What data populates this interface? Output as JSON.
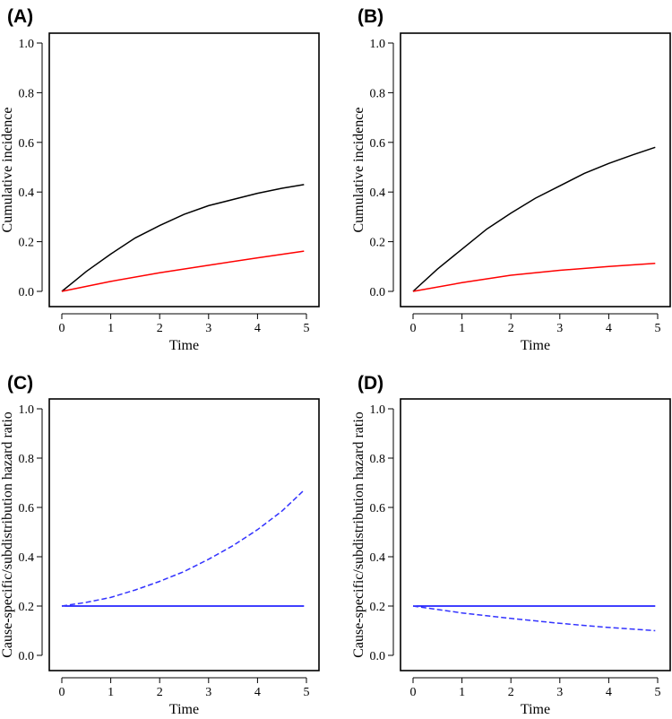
{
  "chart_data": [
    {
      "panel": "(A)",
      "type": "line",
      "xlabel": "Time",
      "ylabel": "Cumulative incidence",
      "xlim": [
        0,
        5
      ],
      "ylim": [
        0,
        1
      ],
      "xticks": [
        "0",
        "1",
        "2",
        "3",
        "4",
        "5"
      ],
      "yticks": [
        "0.0",
        "0.2",
        "0.4",
        "0.6",
        "0.8",
        "1.0"
      ],
      "series": [
        {
          "name": "black",
          "color": "#000000",
          "dash": "solid",
          "x": [
            0,
            0.25,
            0.5,
            1,
            1.5,
            2,
            2.5,
            3,
            3.5,
            4,
            4.5,
            4.95
          ],
          "y": [
            0,
            0.04,
            0.08,
            0.15,
            0.215,
            0.265,
            0.31,
            0.345,
            0.37,
            0.395,
            0.415,
            0.43
          ]
        },
        {
          "name": "red",
          "color": "#ff0000",
          "dash": "solid",
          "x": [
            0,
            1,
            2,
            3,
            4,
            4.95
          ],
          "y": [
            0,
            0.04,
            0.075,
            0.105,
            0.135,
            0.162
          ]
        }
      ]
    },
    {
      "panel": "(B)",
      "type": "line",
      "xlabel": "Time",
      "ylabel": "Cumulative incidence",
      "xlim": [
        0,
        5
      ],
      "ylim": [
        0,
        1
      ],
      "xticks": [
        "0",
        "1",
        "2",
        "3",
        "4",
        "5"
      ],
      "yticks": [
        "0.0",
        "0.2",
        "0.4",
        "0.6",
        "0.8",
        "1.0"
      ],
      "series": [
        {
          "name": "black",
          "color": "#000000",
          "dash": "solid",
          "x": [
            0,
            0.5,
            1,
            1.5,
            2,
            2.5,
            3,
            3.5,
            4,
            4.5,
            4.95
          ],
          "y": [
            0,
            0.09,
            0.17,
            0.25,
            0.315,
            0.375,
            0.425,
            0.475,
            0.515,
            0.55,
            0.58
          ]
        },
        {
          "name": "red",
          "color": "#ff0000",
          "dash": "solid",
          "x": [
            0,
            1,
            2,
            3,
            4,
            4.95
          ],
          "y": [
            0,
            0.035,
            0.065,
            0.085,
            0.1,
            0.113
          ]
        }
      ]
    },
    {
      "panel": "(C)",
      "type": "line",
      "xlabel": "Time",
      "ylabel": "Cause-specific/subdistribution hazard ratio",
      "xlim": [
        0,
        5
      ],
      "ylim": [
        0,
        1
      ],
      "xticks": [
        "0",
        "1",
        "2",
        "3",
        "4",
        "5"
      ],
      "yticks": [
        "0.0",
        "0.2",
        "0.4",
        "0.6",
        "0.8",
        "1.0"
      ],
      "series": [
        {
          "name": "blue-solid",
          "color": "#0000ff",
          "dash": "solid",
          "x": [
            0,
            4.95
          ],
          "y": [
            0.2,
            0.2
          ]
        },
        {
          "name": "blue-dashed",
          "color": "#3333ff",
          "dash": "dashed",
          "x": [
            0,
            0.5,
            1,
            1.5,
            2,
            2.5,
            3,
            3.5,
            4,
            4.5,
            4.95
          ],
          "y": [
            0.2,
            0.215,
            0.235,
            0.265,
            0.3,
            0.34,
            0.39,
            0.445,
            0.51,
            0.585,
            0.67
          ]
        }
      ]
    },
    {
      "panel": "(D)",
      "type": "line",
      "xlabel": "Time",
      "ylabel": "Cause-specific/subdistribution hazard ratio",
      "xlim": [
        0,
        5
      ],
      "ylim": [
        0,
        1
      ],
      "xticks": [
        "0",
        "1",
        "2",
        "3",
        "4",
        "5"
      ],
      "yticks": [
        "0.0",
        "0.2",
        "0.4",
        "0.6",
        "0.8",
        "1.0"
      ],
      "series": [
        {
          "name": "blue-solid",
          "color": "#0000ff",
          "dash": "solid",
          "x": [
            0,
            4.95
          ],
          "y": [
            0.2,
            0.2
          ]
        },
        {
          "name": "blue-dashed",
          "color": "#3333ff",
          "dash": "dashed",
          "x": [
            0,
            1,
            2,
            3,
            4,
            4.95
          ],
          "y": [
            0.2,
            0.172,
            0.15,
            0.13,
            0.113,
            0.1
          ]
        }
      ]
    }
  ]
}
